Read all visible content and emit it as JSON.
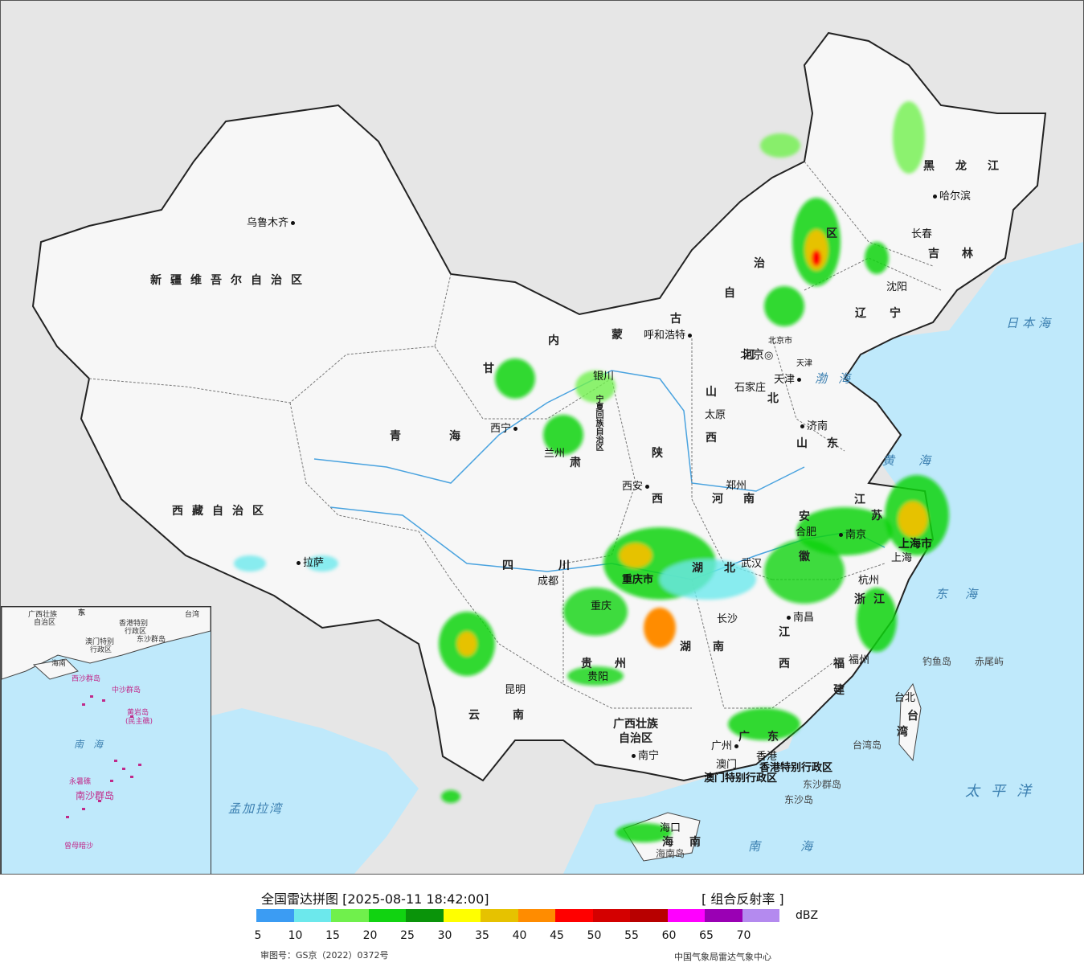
{
  "map": {
    "cities": {
      "urumqi": "乌鲁木齐",
      "lhasa": "拉萨",
      "xining": "西宁",
      "lanzhou": "兰州",
      "yinchuan": "银川",
      "hohhot": "呼和浩特",
      "beijing": "北京",
      "beijing_city": "北京市",
      "tianjin": "天津",
      "tianjin_city": "天津",
      "shijiazhuang": "石家庄",
      "taiyuan": "太原",
      "jinan": "济南",
      "zhengzhou": "郑州",
      "xian": "西安",
      "chengdu": "成都",
      "chongqing": "重庆",
      "chongqing_city": "重庆市",
      "guiyang": "贵阳",
      "kunming": "昆明",
      "nanning": "南宁",
      "changsha": "长沙",
      "wuhan": "武汉",
      "hefei": "合肥",
      "nanjing": "南京",
      "shanghai": "上海",
      "shanghai_city": "上海市",
      "hangzhou": "杭州",
      "nanchang": "南昌",
      "fuzhou": "福州",
      "taipei": "台北",
      "guangzhou": "广州",
      "macau": "澳门",
      "hongkong": "香港",
      "haikou": "海口",
      "shenyang": "沈阳",
      "changchun": "长春",
      "harbin": "哈尔滨",
      "hk_sar": "香港特别行政区",
      "macau_sar": "澳门特别行政区"
    },
    "provinces": {
      "xinjiang": "新疆维吾尔自治区",
      "xizang": "西藏自治区",
      "qinghai": "青海",
      "gansu": "甘",
      "gansu2": "肃",
      "neimenggu1": "内",
      "neimenggu2": "蒙",
      "neimenggu3": "古",
      "neimenggu4": "自",
      "neimenggu5": "治",
      "neimenggu6": "区",
      "ningxia": "宁夏回族自治区",
      "shaanxi1": "陕",
      "shaanxi2": "西",
      "shanxi1": "山",
      "shanxi2": "西",
      "hebei1": "河",
      "hebei2": "北",
      "henan1": "河",
      "henan2": "南",
      "shandong1": "山",
      "shandong2": "东",
      "sichuan1": "四",
      "sichuan2": "川",
      "hubei1": "湖",
      "hubei2": "北",
      "hunan1": "湖",
      "hunan2": "南",
      "guizhou1": "贵",
      "guizhou2": "州",
      "yunnan1": "云",
      "yunnan2": "南",
      "guangxi1": "广西壮族",
      "guangxi2": "自治区",
      "guangdong1": "广",
      "guangdong2": "东",
      "jiangxi1": "江",
      "jiangxi2": "西",
      "fujian1": "福",
      "fujian2": "建",
      "zhejiang1": "浙",
      "zhejiang2": "江",
      "anhui1": "安",
      "anhui2": "徽",
      "jiangsu1": "江",
      "jiangsu2": "苏",
      "taiwan1": "台",
      "taiwan2": "湾",
      "hainan1": "海",
      "hainan2": "南",
      "liaoning1": "辽",
      "liaoning2": "宁",
      "jilin1": "吉",
      "jilin2": "林",
      "heilongjiang": "黑龙江"
    },
    "seas": {
      "japan_sea": "日本海",
      "bohai": "渤海",
      "yellow_sea": "黄海",
      "east_sea": "东海",
      "pacific": "太平洋",
      "south_sea": "南海",
      "bengal": "孟加拉湾"
    },
    "islands": {
      "diaoyu": "钓鱼岛",
      "chiwei": "赤尾屿",
      "taiwan_isl": "台湾岛",
      "dongsha_group": "东沙群岛",
      "dongsha": "东沙岛",
      "hainan_isl": "海南岛"
    },
    "inset": {
      "guangxi": "广西壮族",
      "guangxi2": "自治区",
      "hainan": "海南",
      "hk": "香港特别",
      "hk2": "行政区",
      "macau": "澳门特别",
      "macau2": "行政区",
      "taiwan": "台湾",
      "dongsha": "东沙群岛",
      "xisha": "西沙群岛",
      "zhongsha": "中沙群岛",
      "huangyan": "黄岩岛",
      "huangyan2": "(民主礁)",
      "nansha": "南沙群岛",
      "yongshu": "永暑礁",
      "zengmu": "曾母暗沙",
      "south_sea": "南海",
      "guangdong": "东"
    }
  },
  "legend": {
    "title": "全国雷达拼图 [2025-08-11 18:42:00]",
    "product": "[ 组合反射率 ]",
    "unit": "dBZ",
    "colors": [
      "#3b9cf3",
      "#6ce8ec",
      "#70f04c",
      "#11d311",
      "#0a940a",
      "#ffff00",
      "#e6c200",
      "#ff8c00",
      "#ff0000",
      "#d40000",
      "#b80000",
      "#ff00ff",
      "#9a00b4",
      "#b48aef"
    ],
    "ticks": [
      "5",
      "10",
      "15",
      "20",
      "25",
      "30",
      "35",
      "40",
      "45",
      "50",
      "55",
      "60",
      "65",
      "70"
    ],
    "review_no": "审图号：GS京（2022）0372号",
    "source": "中国气象局雷达气象中心"
  }
}
